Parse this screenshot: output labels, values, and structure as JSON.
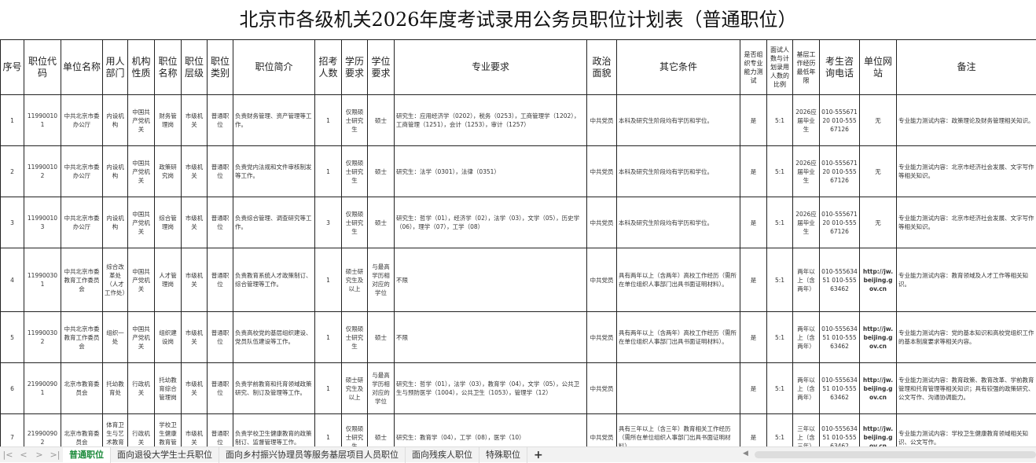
{
  "title": "北京市各级机关2026年度考试录用公务员职位计划表（普通职位）",
  "columns": [
    "序号",
    "职位代码",
    "单位名称",
    "用人部门",
    "机构性质",
    "职位名称",
    "职位层级",
    "职位类别",
    "职位简介",
    "招考人数",
    "学历要求",
    "学位要求",
    "专业要求",
    "政治面貌",
    "其它条件",
    "是否组织专业能力测试",
    "面试人数与计划录用人数的比例",
    "基层工作经历最低年限",
    "考生咨询电话",
    "单位网站",
    "备注"
  ],
  "rows": [
    [
      "1",
      "119900101",
      "中共北京市委办公厅",
      "内设机构",
      "中国共产党机关",
      "财务管理岗",
      "市级机关",
      "普通职位",
      "负责财务管理、资产管理等工作。",
      "1",
      "仅限硕士研究生",
      "硕士",
      "研究生：应用经济学（0202），税务（0253），工商管理学（1202），工商管理（1251），会计（1253），审计（1257）",
      "中共党员",
      "本科及研究生阶段均有学历和学位。",
      "是",
      "5:1",
      "2026应届毕业生",
      "010-55567120 010-55567126",
      "无",
      "专业能力测试内容：政策理论及财务管理相关知识。"
    ],
    [
      "2",
      "119900102",
      "中共北京市委办公厅",
      "内设机构",
      "中国共产党机关",
      "政策研究岗",
      "市级机关",
      "普通职位",
      "负责党内法规和文件审核制发等工作。",
      "1",
      "仅限硕士研究生",
      "硕士",
      "研究生：法学（0301），法律（0351）",
      "中共党员",
      "本科及研究生阶段均有学历和学位。",
      "是",
      "5:1",
      "2026应届毕业生",
      "010-55567120 010-55567126",
      "无",
      "专业能力测试内容：北京市经济社会发展、文字写作等相关知识。"
    ],
    [
      "3",
      "119900103",
      "中共北京市委办公厅",
      "内设机构",
      "中国共产党机关",
      "综合管理岗",
      "市级机关",
      "普通职位",
      "负责综合管理、调查研究等工作。",
      "3",
      "仅限硕士研究生",
      "硕士",
      "研究生：哲学（01），经济学（02），法学（03），文学（05），历史学（06），理学（07），工学（08）",
      "中共党员",
      "本科及研究生阶段均有学历和学位。",
      "是",
      "5:1",
      "2026应届毕业生",
      "010-55567120 010-55567126",
      "无",
      "专业能力测试内容：北京市经济社会发展、文字写作等相关知识。"
    ],
    [
      "4",
      "119900301",
      "中共北京市委教育工作委员会",
      "综合改革处（人才工作处）",
      "中国共产党机关",
      "人才管理岗",
      "市级机关",
      "普通职位",
      "负责教育系统人才政策制订、综合管理等工作。",
      "1",
      "硕士研究生及以上",
      "与最高学历相对应的学位",
      "不限",
      "中共党员",
      "具有两年以上（含两年）高校工作经历（需所在单位组织人事部门出具书面证明材料）。",
      "是",
      "5:1",
      "两年以上（含两年）",
      "010-55563451 010-55563462",
      "http://jw.beijing.gov.cn",
      "专业能力测试内容：教育领域及人才工作等相关知识。"
    ],
    [
      "5",
      "119900302",
      "中共北京市委教育工作委员会",
      "组织一处",
      "中国共产党机关",
      "组织建设岗",
      "市级机关",
      "普通职位",
      "负责高校党的基层组织建设、党员队伍建设等工作。",
      "1",
      "仅限硕士研究生",
      "硕士",
      "不限",
      "中共党员",
      "具有两年以上（含两年）高校工作经历（需所在单位组织人事部门出具书面证明材料）。",
      "是",
      "5:1",
      "两年以上（含两年）",
      "010-55563451 010-55563462",
      "http://jw.beijing.gov.cn",
      "专业能力测试内容：党的基本知识和高校党组织工作的基本制度要求等相关内容。"
    ],
    [
      "6",
      "219900901",
      "北京市教育委员会",
      "托幼教育处",
      "行政机关",
      "托幼教育综合管理岗",
      "市级机关",
      "普通职位",
      "负责学前教育和托育领域政策研究、制订及管理等工作。",
      "1",
      "硕士研究生及以上",
      "与最高学历相对应的学位",
      "研究生：哲学（01），法学（03），教育学（04），文学（05），公共卫生与预防医学（1004），公共卫生（1053），管理学（12）",
      "中共党员",
      "",
      "是",
      "5:1",
      "两年以上（含两年）",
      "010-55563451 010-55563462",
      "http://jw.beijing.gov.cn",
      "专业能力测试内容：教育政策、教育改革、学前教育管理和托育管理等相关知识；具有较强的政策研究、公文写作、沟通协调能力。"
    ],
    [
      "7",
      "219900902",
      "北京市教育委员会",
      "体育卫生与艺术教育处",
      "行政机关",
      "学校卫生健康教育管理岗",
      "市级机关",
      "普通职位",
      "负责学校卫生健康教育的政策制订、监督管理等工作。",
      "1",
      "仅限硕士研究生",
      "硕士",
      "研究生：教育学（04），工学（08），医学（10）",
      "中共党员",
      "具有三年以上（含三年）教育相关工作经历（需所在单位组织人事部门出具书面证明材料）。",
      "是",
      "5:1",
      "三年以上（含三年）",
      "010-55563451 010-55563462",
      "http://jw.beijing.gov.cn",
      "专业能力测试内容：学校卫生健康教育领域相关知识、公文写作。"
    ]
  ],
  "sheet_tabs": [
    "普通职位",
    "面向退役大学生士兵职位",
    "面向乡村振兴协理员等服务基层项目人员职位",
    "面向残疾人职位",
    "特殊职位"
  ],
  "active_tab": "普通职位",
  "add_sheet": "+",
  "accent": "#1b8a3a"
}
